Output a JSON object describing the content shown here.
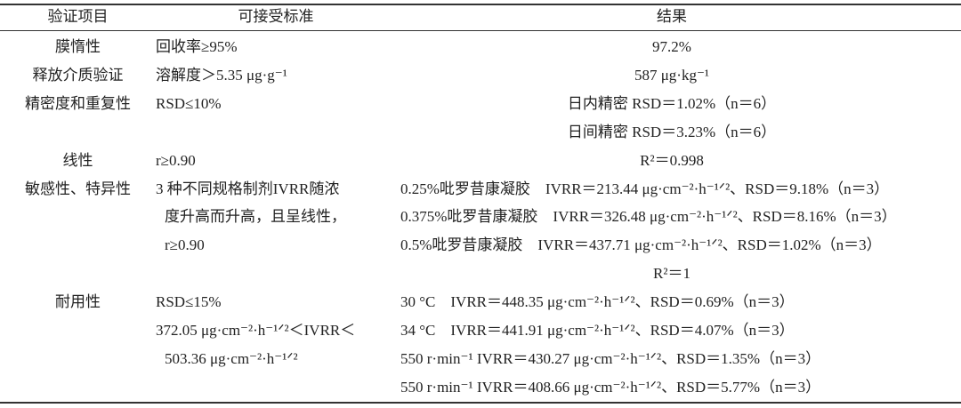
{
  "table": {
    "header": [
      "验证项目",
      "可接受标准",
      "结果"
    ],
    "rows": [
      [
        "膜惰性",
        "回收率≥95%",
        "97.2%"
      ],
      [
        "释放介质验证",
        "溶解度＞5.35 μg·g⁻¹",
        "587 μg·kg⁻¹"
      ],
      [
        "精密度和重复性",
        "RSD≤10%",
        "日内精密 RSD＝1.02%（n＝6）"
      ],
      [
        null,
        null,
        "日间精密 RSD＝3.23%（n＝6）"
      ],
      [
        "线性",
        "r≥0.90",
        "R²＝0.998"
      ],
      [
        "敏感性、特异性",
        "3 种不同规格制剂IVRR随浓",
        "0.25%吡罗昔康凝胶　IVRR＝213.44 μg·cm⁻²·h⁻¹ᐟ²、RSD＝9.18%（n＝3）"
      ],
      [
        null,
        "度升高而升高，且呈线性，",
        "0.375%吡罗昔康凝胶　IVRR＝326.48 μg·cm⁻²·h⁻¹ᐟ²、RSD＝8.16%（n＝3）"
      ],
      [
        null,
        "r≥0.90",
        "0.5%吡罗昔康凝胶　IVRR＝437.71 μg·cm⁻²·h⁻¹ᐟ²、RSD＝1.02%（n＝3）"
      ],
      [
        null,
        null,
        "R²＝1"
      ],
      [
        "耐用性",
        "RSD≤15%",
        "30 °C　IVRR＝448.35 μg·cm⁻²·h⁻¹ᐟ²、RSD＝0.69%（n＝3）"
      ],
      [
        null,
        "372.05 μg·cm⁻²·h⁻¹ᐟ²＜IVRR＜",
        "34 °C　IVRR＝441.91 μg·cm⁻²·h⁻¹ᐟ²、RSD＝4.07%（n＝3）"
      ],
      [
        null,
        "503.36 μg·cm⁻²·h⁻¹ᐟ²",
        "550 r·min⁻¹ IVRR＝430.27 μg·cm⁻²·h⁻¹ᐟ²、RSD＝1.35%（n＝3）"
      ],
      [
        null,
        null,
        "550 r·min⁻¹ IVRR＝408.66 μg·cm⁻²·h⁻¹ᐟ²、RSD＝5.77%（n＝3）"
      ]
    ]
  }
}
